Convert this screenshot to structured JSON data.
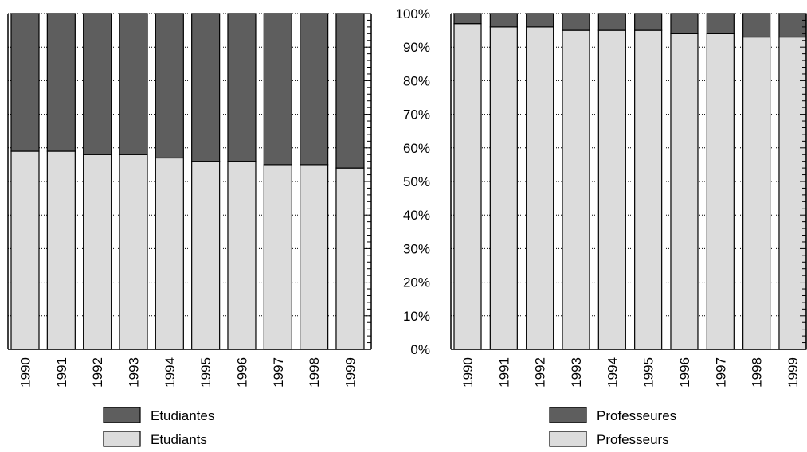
{
  "chart_data": [
    {
      "type": "bar",
      "stacked": true,
      "percent": true,
      "categories": [
        "1990",
        "1991",
        "1992",
        "1993",
        "1994",
        "1995",
        "1996",
        "1997",
        "1998",
        "1999"
      ],
      "series": [
        {
          "name": "Etudiants",
          "color": "#dcdcdc",
          "values": [
            59,
            59,
            58,
            58,
            57,
            56,
            56,
            55,
            55,
            54
          ]
        },
        {
          "name": "Etudiantes",
          "color": "#5e5e5e",
          "values": [
            41,
            41,
            42,
            42,
            43,
            44,
            44,
            45,
            45,
            46
          ]
        }
      ],
      "ylim": [
        0,
        100
      ],
      "grid": true,
      "legend_placement": "bottom"
    },
    {
      "type": "bar",
      "stacked": true,
      "percent": true,
      "categories": [
        "1990",
        "1991",
        "1992",
        "1993",
        "1994",
        "1995",
        "1996",
        "1997",
        "1998",
        "1999"
      ],
      "series": [
        {
          "name": "Professeurs",
          "color": "#dcdcdc",
          "values": [
            97,
            96,
            96,
            95,
            95,
            95,
            94,
            94,
            93,
            93
          ]
        },
        {
          "name": "Professeures",
          "color": "#5e5e5e",
          "values": [
            3,
            4,
            4,
            5,
            5,
            5,
            6,
            6,
            7,
            7
          ]
        }
      ],
      "ylim": [
        0,
        100
      ],
      "grid": true,
      "legend_placement": "bottom"
    }
  ],
  "y_tick_labels": [
    "0%",
    "10%",
    "20%",
    "30%",
    "40%",
    "50%",
    "60%",
    "70%",
    "80%",
    "90%",
    "100%"
  ]
}
